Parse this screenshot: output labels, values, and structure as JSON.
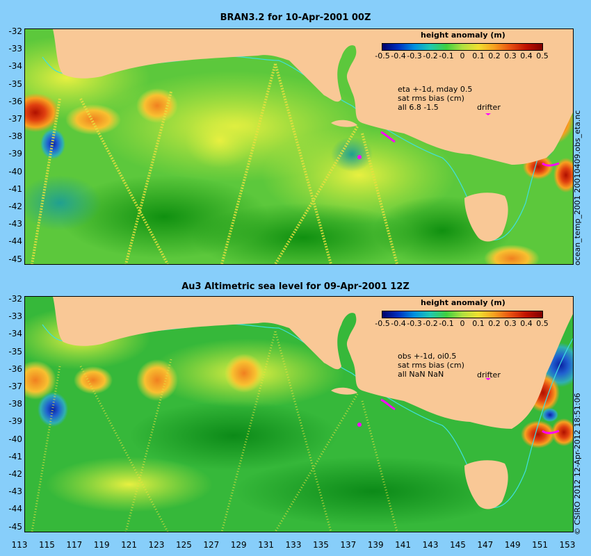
{
  "colors": {
    "background": "#87CEFA",
    "land": "#F9C896",
    "ocean_base": "#41C041",
    "drifter": "#FF00FF",
    "shelf_line": "#3FE0E0"
  },
  "panels": [
    {
      "title": "BRAN3.2 for 10-Apr-2001 00Z",
      "colorbar_title": "height anomaly (m)",
      "colorbar_ticks": [
        "-0.5",
        "-0.4",
        "-0.3",
        "-0.2",
        "-0.1",
        "0",
        "0.1",
        "0.2",
        "0.3",
        "0.4",
        "0.5"
      ],
      "note_lines": [
        "eta +-1d, mday 0.5",
        "sat rms bias (cm)",
        "all 6.8 -1.5"
      ],
      "drifter_label": "drifter",
      "side_label": "ocean_temp_2001 20010409.obs_eta.nc"
    },
    {
      "title": "Au3 Altimetric sea level  for 09-Apr-2001 12Z",
      "colorbar_title": "height anomaly (m)",
      "colorbar_ticks": [
        "-0.5",
        "-0.4",
        "-0.3",
        "-0.2",
        "-0.1",
        "0",
        "0.1",
        "0.2",
        "0.3",
        "0.4",
        "0.5"
      ],
      "note_lines": [
        "obs +-1d, oi0.5",
        "sat rms bias (cm)",
        "all NaN NaN"
      ],
      "drifter_label": "drifter",
      "side_label": "© CSIRO  2012   12-Apr-2012 18:51:06"
    }
  ],
  "y_axis": [
    "-32",
    "-33",
    "-34",
    "-35",
    "-36",
    "-37",
    "-38",
    "-39",
    "-40",
    "-41",
    "-42",
    "-43",
    "-44",
    "-45"
  ],
  "x_axis": [
    "113",
    "115",
    "117",
    "119",
    "121",
    "123",
    "125",
    "127",
    "129",
    "131",
    "133",
    "135",
    "137",
    "139",
    "141",
    "143",
    "145",
    "147",
    "149",
    "151",
    "153"
  ]
}
